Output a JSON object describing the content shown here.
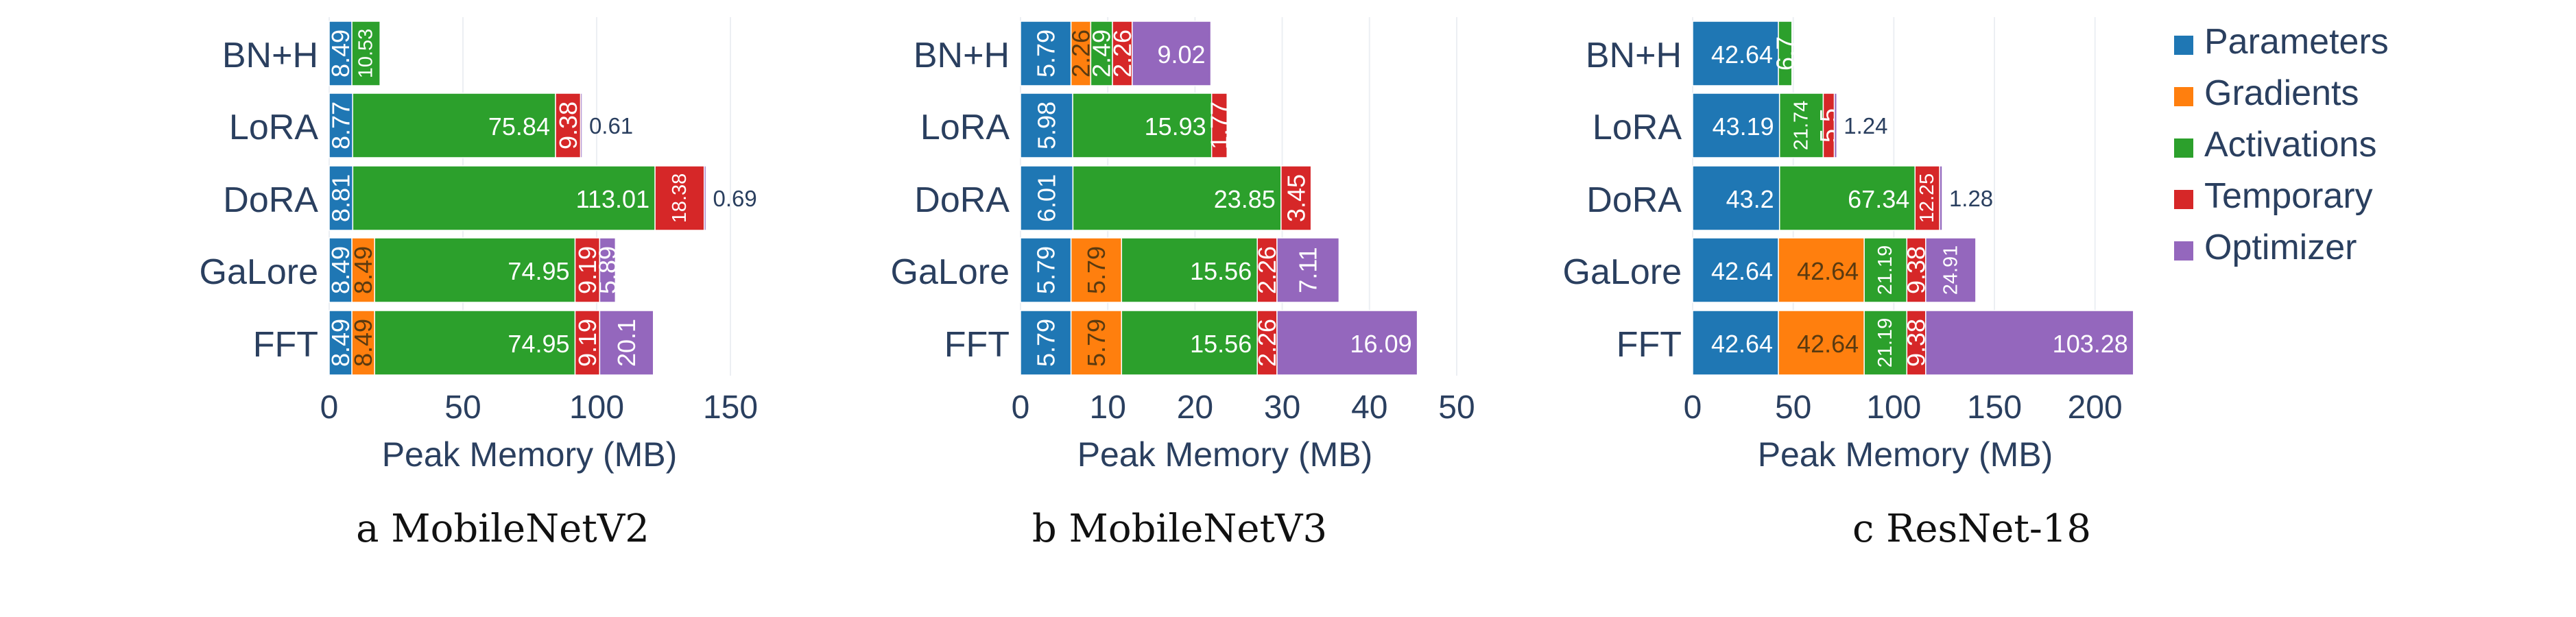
{
  "legend": {
    "items": [
      {
        "name": "Parameters",
        "color": "#1f77b4"
      },
      {
        "name": "Gradients",
        "color": "#ff7f0e"
      },
      {
        "name": "Activations",
        "color": "#2ca02c"
      },
      {
        "name": "Temporary",
        "color": "#d62728"
      },
      {
        "name": "Optimizer",
        "color": "#9467bd"
      }
    ]
  },
  "chart_data": [
    {
      "type": "bar",
      "orientation": "horizontal",
      "stacked": true,
      "caption": "a  MobileNetV2",
      "xlabel": "Peak Memory (MB)",
      "xlim": [
        0,
        160
      ],
      "xticks": [
        0,
        50,
        100,
        150
      ],
      "categories": [
        "BN+H",
        "LoRA",
        "DoRA",
        "GaLore",
        "FFT"
      ],
      "series": [
        {
          "name": "Parameters",
          "values": [
            8.49,
            8.77,
            8.81,
            8.49,
            8.49
          ]
        },
        {
          "name": "Gradients",
          "values": [
            0,
            0,
            0,
            8.49,
            8.49
          ]
        },
        {
          "name": "Activations",
          "values": [
            10.53,
            75.84,
            113.01,
            74.95,
            74.95
          ]
        },
        {
          "name": "Temporary",
          "values": [
            0,
            9.38,
            18.38,
            9.19,
            9.19
          ]
        },
        {
          "name": "Optimizer",
          "values": [
            0,
            0.61,
            0.69,
            5.89,
            20.1
          ]
        }
      ]
    },
    {
      "type": "bar",
      "orientation": "horizontal",
      "stacked": true,
      "caption": "b  MobileNetV3",
      "xlabel": "Peak Memory (MB)",
      "xlim": [
        0,
        50
      ],
      "xticks": [
        0,
        10,
        20,
        30,
        40,
        50
      ],
      "categories": [
        "BN+H",
        "LoRA",
        "DoRA",
        "GaLore",
        "FFT"
      ],
      "series": [
        {
          "name": "Parameters",
          "values": [
            5.79,
            5.98,
            6.01,
            5.79,
            5.79
          ]
        },
        {
          "name": "Gradients",
          "values": [
            2.26,
            0,
            0,
            5.79,
            5.79
          ]
        },
        {
          "name": "Activations",
          "values": [
            2.49,
            15.93,
            23.85,
            15.56,
            15.56
          ]
        },
        {
          "name": "Temporary",
          "values": [
            2.26,
            1.77,
            3.45,
            2.26,
            2.26
          ]
        },
        {
          "name": "Optimizer",
          "values": [
            9.02,
            0,
            0,
            7.11,
            16.09
          ]
        }
      ]
    },
    {
      "type": "bar",
      "orientation": "horizontal",
      "stacked": true,
      "caption": "c  ResNet-18",
      "xlabel": "Peak Memory (MB)",
      "xlim": [
        0,
        225
      ],
      "xticks": [
        0,
        50,
        100,
        150,
        200
      ],
      "categories": [
        "BN+H",
        "LoRA",
        "DoRA",
        "GaLore",
        "FFT"
      ],
      "series": [
        {
          "name": "Parameters",
          "values": [
            42.64,
            43.19,
            43.2,
            42.64,
            42.64
          ]
        },
        {
          "name": "Gradients",
          "values": [
            0,
            0,
            0,
            42.64,
            42.64
          ]
        },
        {
          "name": "Activations",
          "values": [
            6.7,
            21.74,
            67.34,
            21.19,
            21.19
          ]
        },
        {
          "name": "Temporary",
          "values": [
            0,
            5.5,
            12.25,
            9.38,
            9.38
          ]
        },
        {
          "name": "Optimizer",
          "values": [
            0,
            1.24,
            1.28,
            24.91,
            103.28
          ]
        }
      ]
    }
  ]
}
